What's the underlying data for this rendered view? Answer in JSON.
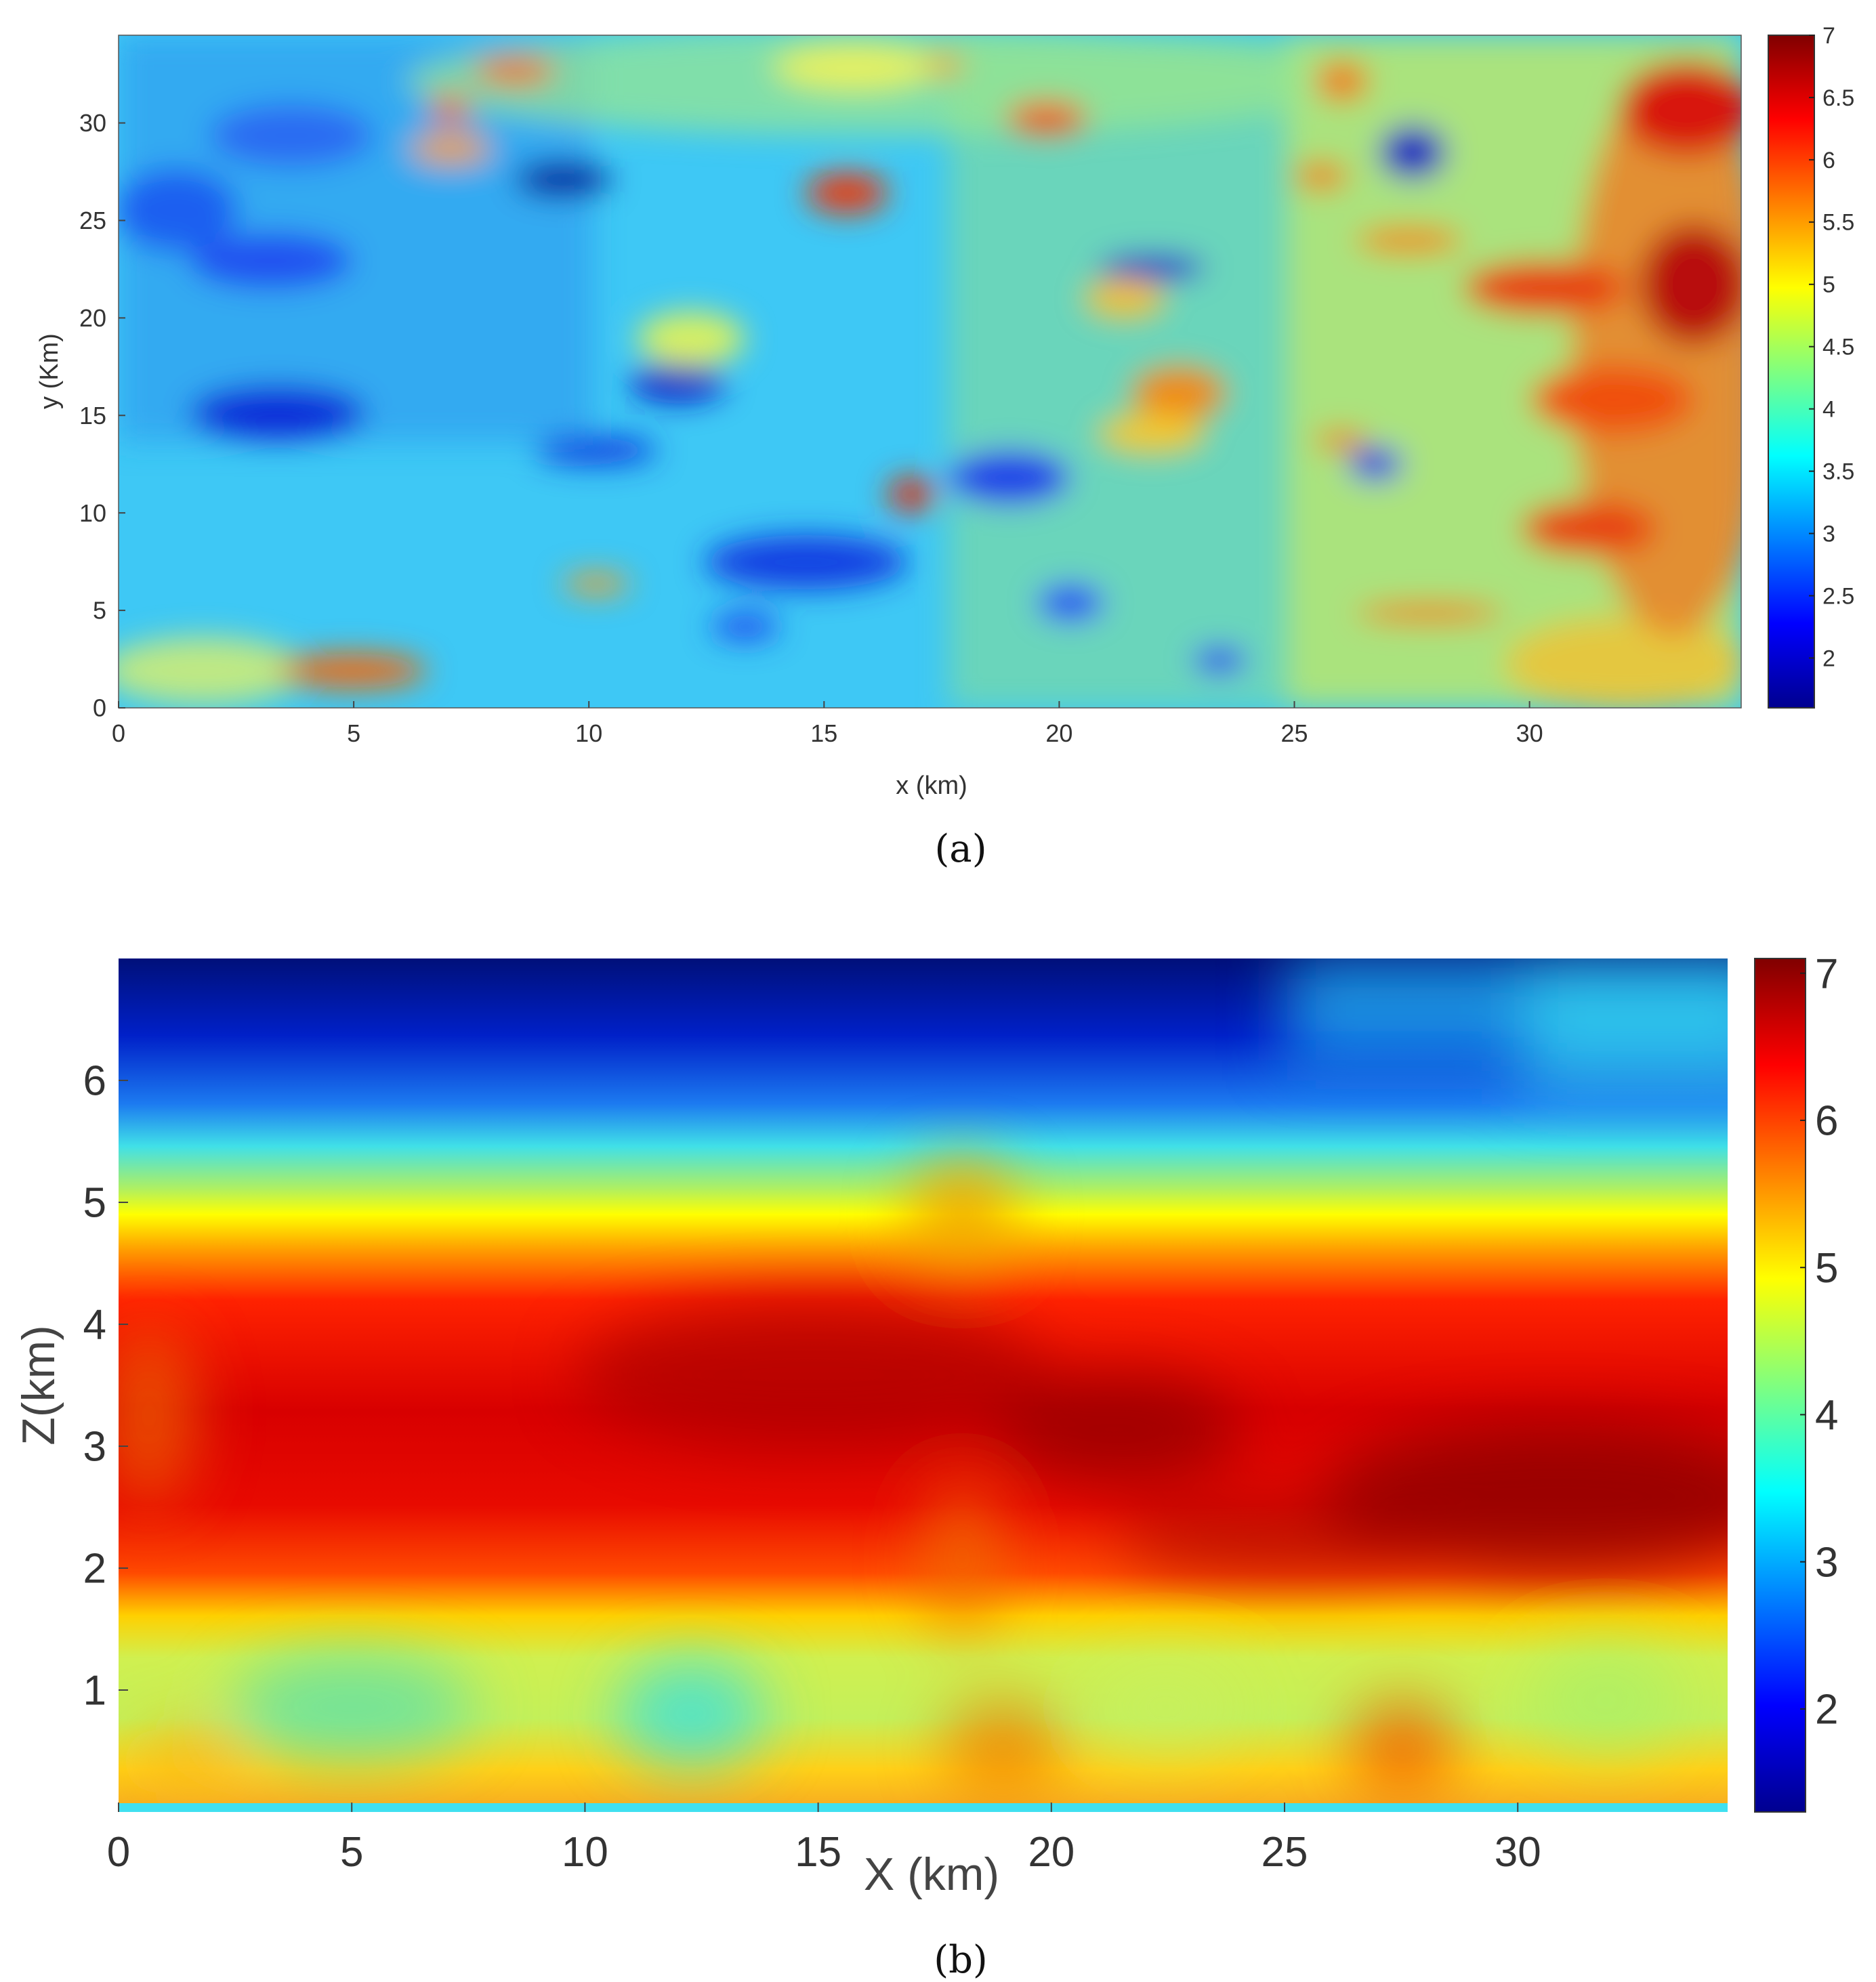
{
  "chart_data": [
    {
      "type": "heatmap",
      "panel_label": "(a)",
      "title": "",
      "xlabel": "x (km)",
      "ylabel": "y (Km)",
      "xlim": [
        0,
        34.5
      ],
      "ylim": [
        0,
        34.5
      ],
      "xticks": [
        0,
        5,
        10,
        15,
        20,
        25,
        30
      ],
      "yticks": [
        0,
        5,
        10,
        15,
        20,
        25,
        30
      ],
      "colormap": "jet",
      "colorbar": {
        "range": [
          1.6,
          7
        ],
        "ticks": [
          "7",
          "6.5",
          "6",
          "5.5",
          "5",
          "4.5",
          "4",
          "3.5",
          "3",
          "2.5",
          "2"
        ]
      },
      "grid": false
    },
    {
      "type": "heatmap",
      "panel_label": "(b)",
      "title": "",
      "xlabel": "X (km)",
      "ylabel": "Z(km)",
      "xlim": [
        0,
        34.5
      ],
      "ylim": [
        0,
        7
      ],
      "xticks": [
        0,
        5,
        10,
        15,
        20,
        25,
        30
      ],
      "yticks": [
        1,
        2,
        3,
        4,
        5,
        6
      ],
      "colormap": "jet",
      "colorbar": {
        "range": [
          1.3,
          7.1
        ],
        "ticks": [
          "7",
          "6",
          "5",
          "4",
          "3",
          "2"
        ]
      },
      "grid": false
    }
  ]
}
